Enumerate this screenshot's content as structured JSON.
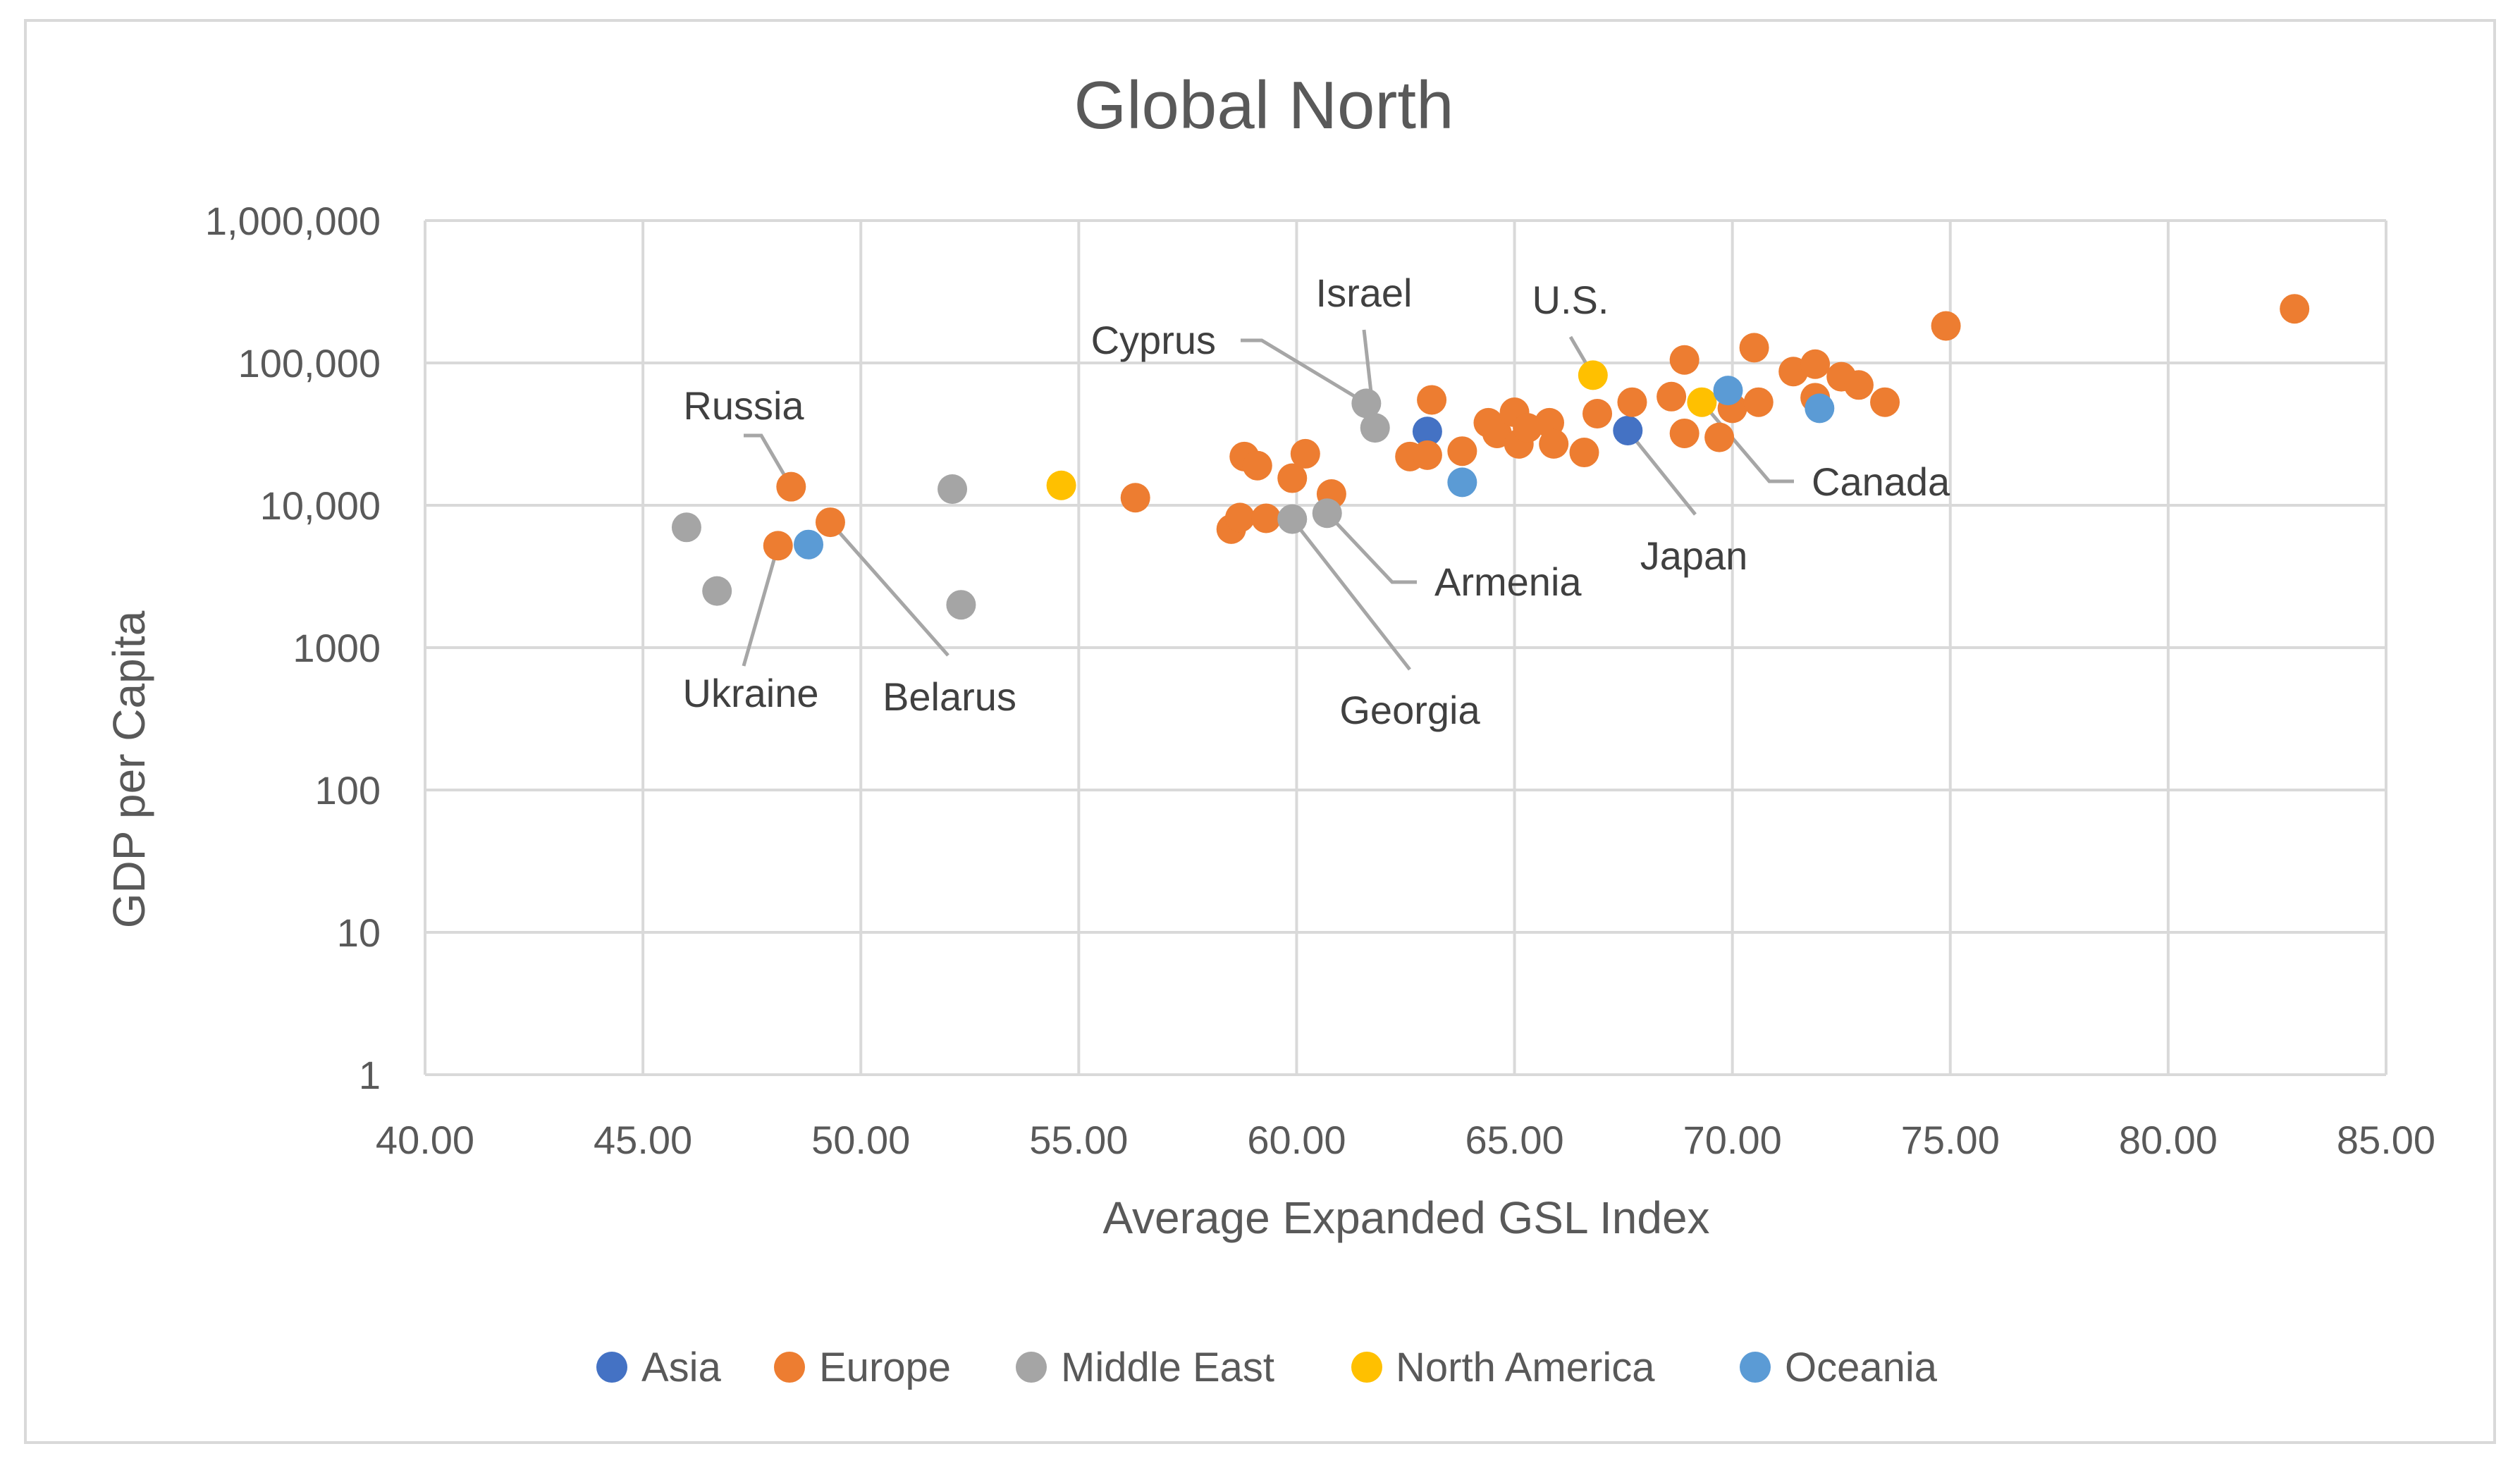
{
  "chart_data": {
    "type": "scatter",
    "title": "Global North",
    "xlabel": "Average Expanded GSL Index",
    "ylabel": "GDP per Capita",
    "xlim": [
      40,
      85
    ],
    "ylim": [
      1,
      1000000
    ],
    "yscale": "log",
    "grid": true,
    "legend_position": "bottom",
    "x_ticks": [
      "40.00",
      "45.00",
      "50.00",
      "55.00",
      "60.00",
      "65.00",
      "70.00",
      "75.00",
      "80.00",
      "85.00"
    ],
    "y_ticks": [
      "1,000,000",
      "100,000",
      "10,000",
      "1000",
      "100",
      "10",
      "1"
    ],
    "series": [
      {
        "name": "Asia",
        "color": "#4472C4",
        "points": [
          [
            63.0,
            33000
          ],
          [
            67.6,
            33500
          ]
        ]
      },
      {
        "name": "Europe",
        "color": "#ED7D31",
        "points": [
          [
            48.1,
            5200
          ],
          [
            48.4,
            13500
          ],
          [
            49.3,
            7600
          ],
          [
            56.3,
            11300
          ],
          [
            58.5,
            6800
          ],
          [
            58.7,
            8200
          ],
          [
            58.8,
            22000
          ],
          [
            59.1,
            19000
          ],
          [
            59.3,
            8100
          ],
          [
            59.9,
            15500
          ],
          [
            60.2,
            23000
          ],
          [
            60.8,
            12000
          ],
          [
            62.6,
            22000
          ],
          [
            63.0,
            22500
          ],
          [
            63.1,
            55000
          ],
          [
            63.8,
            24000
          ],
          [
            64.4,
            38000
          ],
          [
            64.6,
            32000
          ],
          [
            65.0,
            45000
          ],
          [
            65.1,
            27000
          ],
          [
            65.3,
            35000
          ],
          [
            65.8,
            38000
          ],
          [
            65.9,
            27000
          ],
          [
            66.6,
            23500
          ],
          [
            66.9,
            44000
          ],
          [
            67.7,
            53000
          ],
          [
            68.6,
            58000
          ],
          [
            68.9,
            105000
          ],
          [
            68.9,
            32000
          ],
          [
            69.7,
            30000
          ],
          [
            70.0,
            48000
          ],
          [
            70.5,
            128000
          ],
          [
            70.6,
            53000
          ],
          [
            71.4,
            87000
          ],
          [
            71.9,
            98000
          ],
          [
            71.9,
            57000
          ],
          [
            72.5,
            80000
          ],
          [
            72.9,
            70000
          ],
          [
            73.5,
            53000
          ],
          [
            74.9,
            182000
          ],
          [
            82.9,
            240000
          ]
        ]
      },
      {
        "name": "Middle East",
        "color": "#A5A5A5",
        "points": [
          [
            46.0,
            7000
          ],
          [
            46.7,
            2500
          ],
          [
            52.1,
            13000
          ],
          [
            52.3,
            2000
          ],
          [
            59.9,
            8000
          ],
          [
            60.7,
            8800
          ],
          [
            61.6,
            52000
          ],
          [
            61.8,
            35000
          ]
        ]
      },
      {
        "name": "North America",
        "color": "#FFC000",
        "points": [
          [
            54.6,
            13800
          ],
          [
            66.8,
            82000
          ],
          [
            69.3,
            53000
          ]
        ]
      },
      {
        "name": "Oceania",
        "color": "#5B9BD5",
        "points": [
          [
            48.8,
            5300
          ],
          [
            63.8,
            14500
          ],
          [
            69.9,
            64000
          ],
          [
            72.0,
            48000
          ]
        ]
      }
    ],
    "annotations": [
      {
        "text": "Russia",
        "point": [
          48.4,
          13500
        ]
      },
      {
        "text": "Ukraine",
        "point": [
          48.1,
          5200
        ]
      },
      {
        "text": "Belarus",
        "point": [
          49.3,
          7600
        ]
      },
      {
        "text": "Cyprus",
        "point": [
          61.6,
          52000
        ]
      },
      {
        "text": "Israel",
        "point": [
          61.8,
          35000
        ]
      },
      {
        "text": "U.S.",
        "point": [
          66.8,
          82000
        ]
      },
      {
        "text": "Canada",
        "point": [
          69.3,
          53000
        ]
      },
      {
        "text": "Japan",
        "point": [
          67.6,
          33500
        ]
      },
      {
        "text": "Armenia",
        "point": [
          60.7,
          8800
        ]
      },
      {
        "text": "Georgia",
        "point": [
          59.9,
          8000
        ]
      }
    ]
  }
}
